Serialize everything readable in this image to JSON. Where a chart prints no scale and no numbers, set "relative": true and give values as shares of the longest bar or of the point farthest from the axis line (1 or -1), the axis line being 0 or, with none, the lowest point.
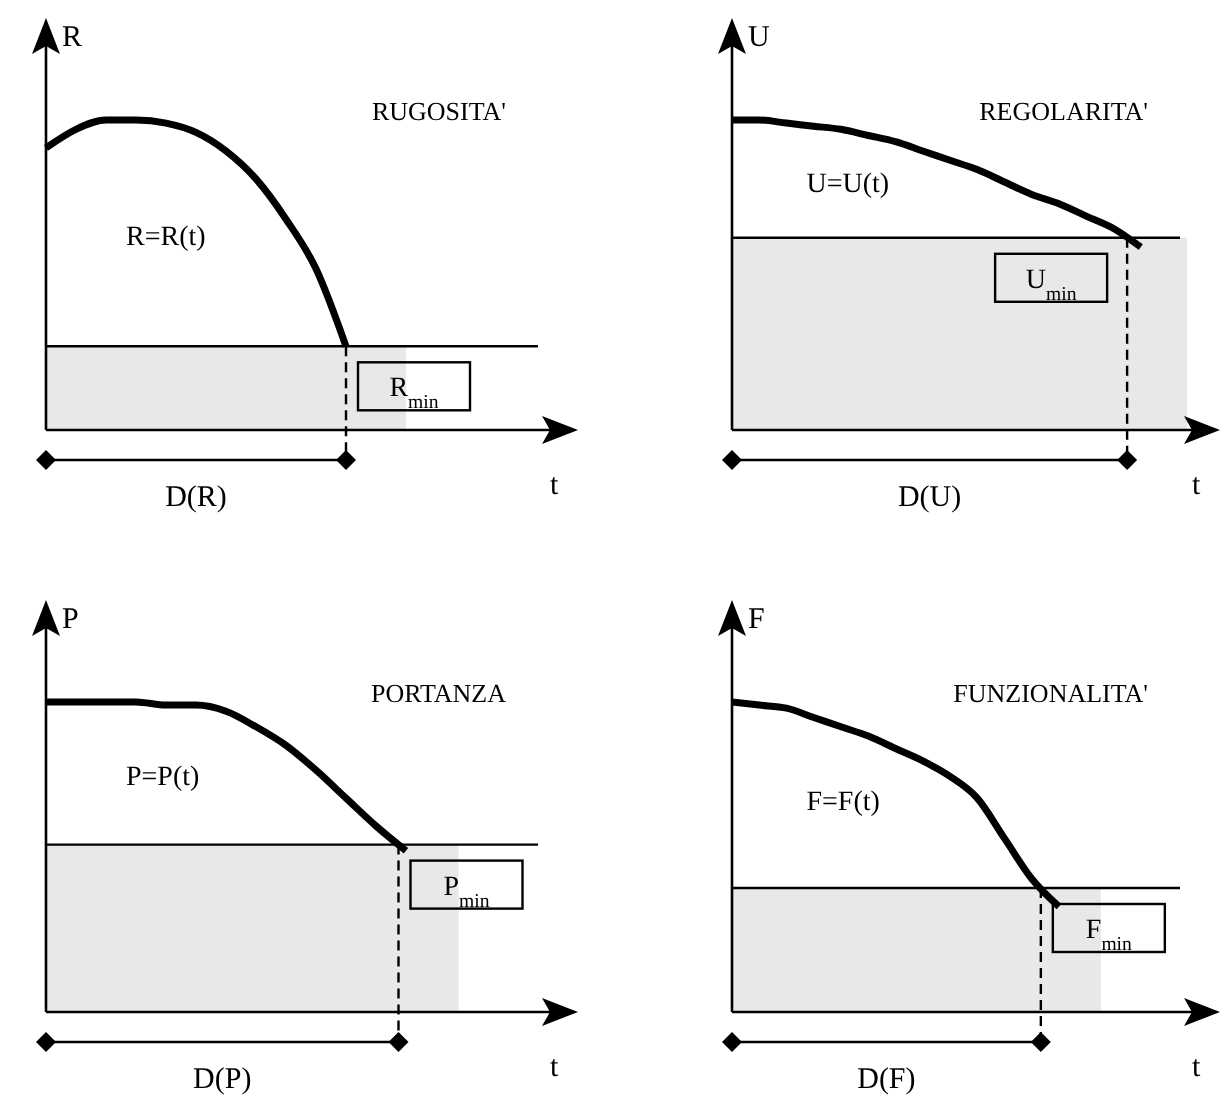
{
  "chart_data": [
    {
      "type": "line",
      "title": "RUGOSITA'",
      "ylabel": "R",
      "xlabel": "t",
      "relative": true,
      "marker": "none",
      "line_style": "solid",
      "annotations": [
        "D(R)"
      ],
      "categories": [
        null,
        null,
        null,
        null,
        null,
        null,
        null,
        null,
        null,
        null,
        null,
        null,
        null,
        null,
        null,
        null,
        null
      ],
      "series": [
        {
          "name": "R=R(t)",
          "color": "#000000",
          "values": [
            0.91,
            0.97,
            1,
            1,
            0.99,
            0.96,
            0.9,
            0.81,
            0.68,
            0.52,
            0.27,
            null,
            null,
            null,
            null,
            null,
            null
          ]
        }
      ],
      "ref_lines": [
        {
          "axis": "y",
          "value": 0.27,
          "label": "R$_{min}$",
          "color": "#000000"
        }
      ],
      "bands": [
        {
          "axis": "y",
          "from": 0,
          "to": 0.27,
          "color": "#e8e8e8"
        }
      ]
    },
    {
      "type": "line",
      "title": "REGOLARITA'",
      "ylabel": "U",
      "xlabel": "t",
      "relative": true,
      "marker": "none",
      "line_style": "solid",
      "annotations": [
        "D(U)"
      ],
      "categories": [
        null,
        null,
        null,
        null,
        null,
        null,
        null,
        null,
        null,
        null,
        null,
        null,
        null,
        null,
        null,
        null,
        null
      ],
      "series": [
        {
          "name": "U=U(t)",
          "color": "#000000",
          "values": [
            1,
            1,
            0.99,
            0.98,
            0.97,
            0.95,
            0.93,
            0.9,
            0.87,
            0.84,
            0.8,
            0.76,
            0.73,
            0.69,
            0.65,
            0.59,
            null
          ]
        }
      ],
      "ref_lines": [
        {
          "axis": "y",
          "value": 0.62,
          "label": "U$_{min}$",
          "color": "#000000"
        }
      ],
      "bands": [
        {
          "axis": "y",
          "from": 0,
          "to": 0.62,
          "color": "#e8e8e8"
        }
      ]
    },
    {
      "type": "line",
      "title": "PORTANZA",
      "ylabel": "P",
      "xlabel": "t",
      "relative": true,
      "marker": "none",
      "line_style": "solid",
      "annotations": [
        "D(P)"
      ],
      "categories": [
        null,
        null,
        null,
        null,
        null,
        null,
        null,
        null,
        null,
        null,
        null,
        null,
        null,
        null,
        null,
        null,
        null
      ],
      "series": [
        {
          "name": "P=P(t)",
          "color": "#000000",
          "values": [
            1,
            1,
            1,
            1,
            0.99,
            0.99,
            0.97,
            0.92,
            0.86,
            0.78,
            0.69,
            0.6,
            0.52,
            null,
            null,
            null,
            null
          ]
        }
      ],
      "ref_lines": [
        {
          "axis": "y",
          "value": 0.54,
          "label": "P$_{min}$",
          "color": "#000000"
        }
      ],
      "bands": [
        {
          "axis": "y",
          "from": 0,
          "to": 0.54,
          "color": "#e8e8e8"
        }
      ]
    },
    {
      "type": "line",
      "title": "FUNZIONALITA'",
      "ylabel": "F",
      "xlabel": "t",
      "relative": true,
      "marker": "none",
      "line_style": "solid",
      "annotations": [
        "D(F)"
      ],
      "categories": [
        null,
        null,
        null,
        null,
        null,
        null,
        null,
        null,
        null,
        null,
        null,
        null,
        null,
        null,
        null,
        null,
        null
      ],
      "series": [
        {
          "name": "F=F(t)",
          "color": "#000000",
          "values": [
            1,
            0.99,
            0.98,
            0.95,
            0.92,
            0.89,
            0.85,
            0.81,
            0.76,
            0.69,
            0.56,
            0.43,
            0.34,
            null,
            null,
            null,
            null
          ]
        }
      ],
      "ref_lines": [
        {
          "axis": "y",
          "value": 0.4,
          "label": "F$_{min}$",
          "color": "#000000"
        }
      ],
      "bands": [
        {
          "axis": "y",
          "from": 0,
          "to": 0.4,
          "color": "#e8e8e8"
        }
      ]
    }
  ]
}
